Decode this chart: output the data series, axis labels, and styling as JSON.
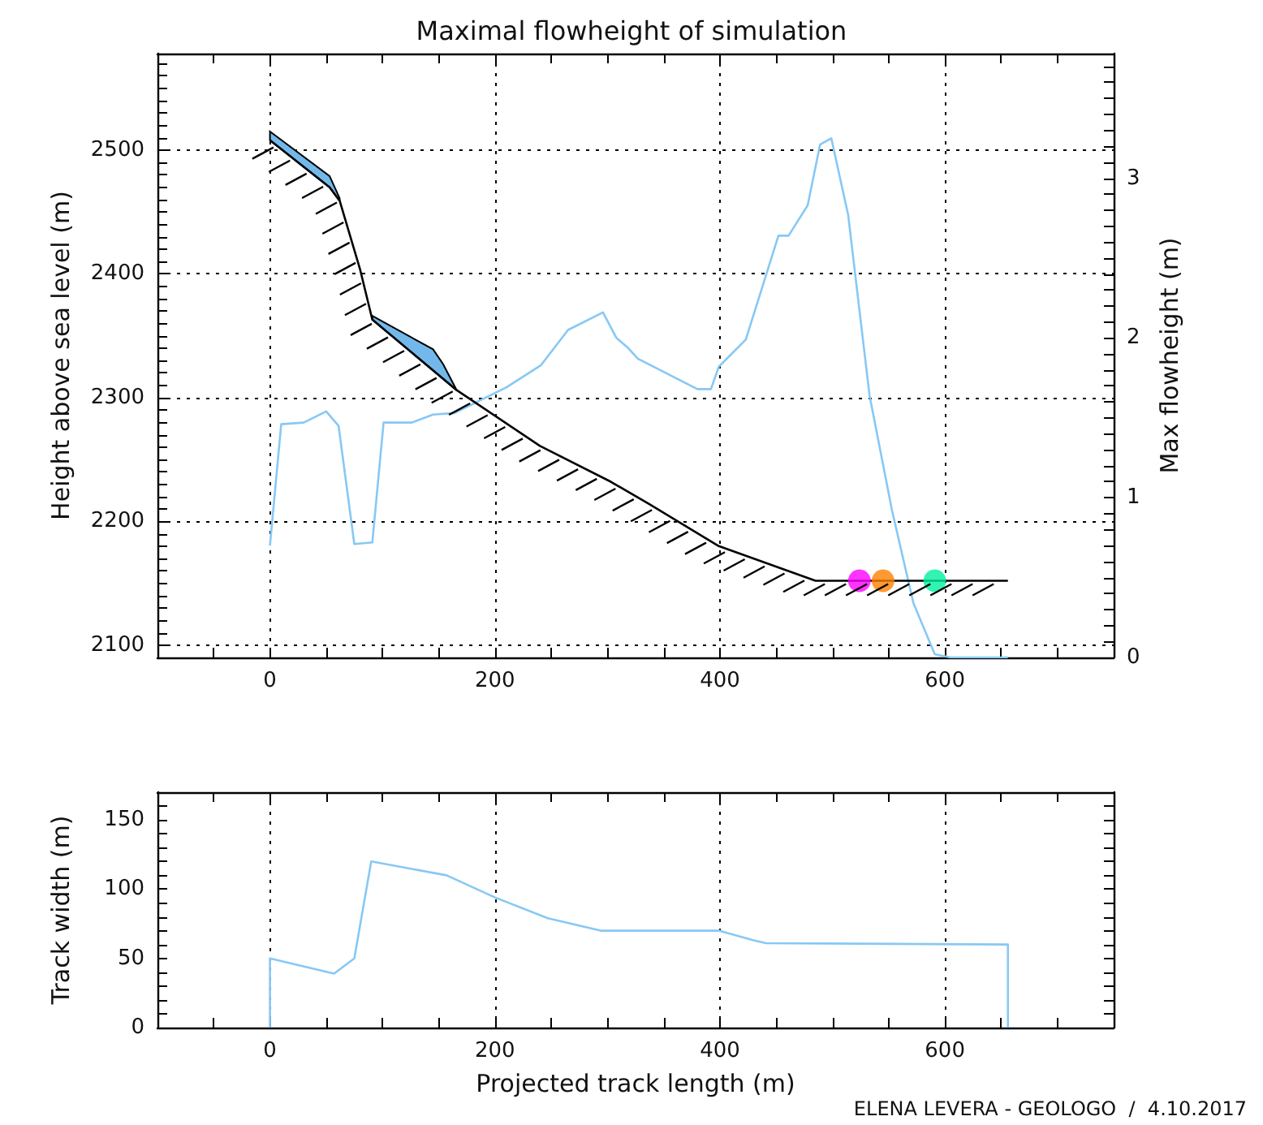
{
  "chart_data": [
    {
      "type": "line",
      "title": "Maximal flowheight of simulation",
      "ylabel": "Height above sea level (m)",
      "y2label": "Max flowheight (m)",
      "xlim": [
        -100,
        750
      ],
      "xticks": [
        {
          "value": -50,
          "label": null
        },
        0,
        {
          "value": 50,
          "label": null
        },
        {
          "value": 100,
          "label": null
        },
        {
          "value": 150,
          "label": null
        },
        200,
        {
          "value": 250,
          "label": null
        },
        {
          "value": 300,
          "label": null
        },
        {
          "value": 350,
          "label": null
        },
        400,
        {
          "value": 450,
          "label": null
        },
        {
          "value": 500,
          "label": null
        },
        {
          "value": 550,
          "label": null
        },
        600,
        {
          "value": 650,
          "label": null
        },
        {
          "value": 700,
          "label": null
        }
      ],
      "ylim": [
        2090,
        2578
      ],
      "yticks": [
        {
          "value": 2090,
          "label": null
        },
        2100,
        {
          "value": 2110,
          "label": null
        },
        {
          "value": 2120,
          "label": null
        },
        {
          "value": 2130,
          "label": null
        },
        {
          "value": 2140,
          "label": null
        },
        {
          "value": 2150,
          "label": null
        },
        {
          "value": 2160,
          "label": null
        },
        {
          "value": 2170,
          "label": null
        },
        {
          "value": 2180,
          "label": null
        },
        {
          "value": 2190,
          "label": null
        },
        2200,
        {
          "value": 2210,
          "label": null
        },
        {
          "value": 2220,
          "label": null
        },
        {
          "value": 2230,
          "label": null
        },
        {
          "value": 2240,
          "label": null
        },
        {
          "value": 2250,
          "label": null
        },
        {
          "value": 2260,
          "label": null
        },
        {
          "value": 2270,
          "label": null
        },
        {
          "value": 2280,
          "label": null
        },
        {
          "value": 2290,
          "label": null
        },
        2300,
        {
          "value": 2310,
          "label": null
        },
        {
          "value": 2320,
          "label": null
        },
        {
          "value": 2330,
          "label": null
        },
        {
          "value": 2340,
          "label": null
        },
        {
          "value": 2350,
          "label": null
        },
        {
          "value": 2360,
          "label": null
        },
        {
          "value": 2370,
          "label": null
        },
        {
          "value": 2380,
          "label": null
        },
        {
          "value": 2390,
          "label": null
        },
        2400,
        {
          "value": 2410,
          "label": null
        },
        {
          "value": 2420,
          "label": null
        },
        {
          "value": 2430,
          "label": null
        },
        {
          "value": 2440,
          "label": null
        },
        {
          "value": 2450,
          "label": null
        },
        {
          "value": 2460,
          "label": null
        },
        {
          "value": 2470,
          "label": null
        },
        {
          "value": 2480,
          "label": null
        },
        {
          "value": 2490,
          "label": null
        },
        2500,
        {
          "value": 2510,
          "label": null
        },
        {
          "value": 2520,
          "label": null
        },
        {
          "value": 2530,
          "label": null
        },
        {
          "value": 2540,
          "label": null
        },
        {
          "value": 2550,
          "label": null
        },
        {
          "value": 2560,
          "label": null
        },
        {
          "value": 2570,
          "label": null
        }
      ],
      "y2lim": [
        0,
        3.78
      ],
      "y2ticks": [
        0,
        {
          "value": 0.1,
          "label": null
        },
        {
          "value": 0.2,
          "label": null
        },
        {
          "value": 0.3,
          "label": null
        },
        {
          "value": 0.4,
          "label": null
        },
        {
          "value": 0.5,
          "label": null
        },
        {
          "value": 0.6,
          "label": null
        },
        {
          "value": 0.7,
          "label": null
        },
        {
          "value": 0.8,
          "label": null
        },
        {
          "value": 0.9,
          "label": null
        },
        1,
        {
          "value": 1.1,
          "label": null
        },
        {
          "value": 1.2,
          "label": null
        },
        {
          "value": 1.3,
          "label": null
        },
        {
          "value": 1.4,
          "label": null
        },
        {
          "value": 1.5,
          "label": null
        },
        {
          "value": 1.6,
          "label": null
        },
        {
          "value": 1.7,
          "label": null
        },
        {
          "value": 1.8,
          "label": null
        },
        {
          "value": 1.9,
          "label": null
        },
        2,
        {
          "value": 2.1,
          "label": null
        },
        {
          "value": 2.2,
          "label": null
        },
        {
          "value": 2.3,
          "label": null
        },
        {
          "value": 2.4,
          "label": null
        },
        {
          "value": 2.5,
          "label": null
        },
        {
          "value": 2.6,
          "label": null
        },
        {
          "value": 2.7,
          "label": null
        },
        {
          "value": 2.8,
          "label": null
        },
        {
          "value": 2.9,
          "label": null
        },
        3,
        {
          "value": 3.1,
          "label": null
        },
        {
          "value": 3.2,
          "label": null
        },
        {
          "value": 3.3,
          "label": null
        },
        {
          "value": 3.4,
          "label": null
        },
        {
          "value": 3.5,
          "label": null
        },
        {
          "value": 3.6,
          "label": null
        },
        {
          "value": 3.7,
          "label": null
        }
      ],
      "grid": true,
      "marker": "none",
      "line_style": "solid",
      "series": [
        {
          "color": "#000000",
          "x": [
            0,
            53,
            62,
            80,
            91,
            166,
            240,
            303,
            337,
            399,
            485,
            656
          ],
          "values": [
            2508,
            2470,
            2459,
            2404,
            2363,
            2306,
            2261,
            2232,
            2214,
            2180,
            2152,
            2152
          ]
        },
        {
          "type": "area",
          "color": "#73b8ea",
          "x": [
            0,
            53,
            62
          ],
          "values": [
            2515,
            2479,
            2461
          ]
        },
        {
          "type": "area",
          "color": "#73b8ea",
          "x": [
            91,
            145,
            154,
            166
          ],
          "values": [
            2366,
            2339,
            2327,
            2306
          ]
        },
        {
          "axis": "y2",
          "color": "#87c8f5",
          "x": [
            0,
            10,
            30,
            50,
            61,
            75,
            91,
            101,
            126,
            145,
            164,
            210,
            241,
            265,
            296,
            308,
            318,
            327,
            380,
            392,
            399,
            423,
            452,
            461,
            478,
            489,
            499,
            514,
            533,
            553,
            572,
            591,
            605,
            656
          ],
          "values": [
            0.7,
            1.46,
            1.47,
            1.54,
            1.45,
            0.71,
            0.72,
            1.47,
            1.47,
            1.52,
            1.53,
            1.69,
            1.83,
            2.05,
            2.16,
            2.0,
            1.94,
            1.87,
            1.68,
            1.68,
            1.82,
            1.99,
            2.64,
            2.64,
            2.83,
            3.21,
            3.25,
            2.77,
            1.64,
            0.92,
            0.34,
            0.02,
            0,
            0
          ]
        },
        {
          "type": "scatter",
          "marker": "circle",
          "x": [
            524,
            545,
            591
          ],
          "values": [
            2152,
            2152,
            2152
          ],
          "colors": [
            "#ff00ff",
            "#ff8000",
            "#00f0a0"
          ]
        }
      ]
    },
    {
      "type": "line",
      "xlabel": "Projected track length (m)",
      "ylabel": "Track width (m)",
      "annotations": [
        "ELENA LEVERA - GEOLOGO  /  4.10.2017"
      ],
      "xlim": [
        -100,
        750
      ],
      "xticks": [
        {
          "value": -50,
          "label": null
        },
        0,
        {
          "value": 50,
          "label": null
        },
        {
          "value": 100,
          "label": null
        },
        {
          "value": 150,
          "label": null
        },
        200,
        {
          "value": 250,
          "label": null
        },
        {
          "value": 300,
          "label": null
        },
        {
          "value": 350,
          "label": null
        },
        400,
        {
          "value": 450,
          "label": null
        },
        {
          "value": 500,
          "label": null
        },
        {
          "value": 550,
          "label": null
        },
        600,
        {
          "value": 650,
          "label": null
        },
        {
          "value": 700,
          "label": null
        }
      ],
      "ylim": [
        0,
        170
      ],
      "yticks": [
        0,
        {
          "value": 10,
          "label": null
        },
        {
          "value": 20,
          "label": null
        },
        {
          "value": 30,
          "label": null
        },
        {
          "value": 40,
          "label": null
        },
        50,
        {
          "value": 60,
          "label": null
        },
        {
          "value": 70,
          "label": null
        },
        {
          "value": 80,
          "label": null
        },
        {
          "value": 90,
          "label": null
        },
        100,
        {
          "value": 110,
          "label": null
        },
        {
          "value": 120,
          "label": null
        },
        {
          "value": 130,
          "label": null
        },
        {
          "value": 140,
          "label": null
        },
        150,
        {
          "value": 160,
          "label": null
        }
      ],
      "grid": "x",
      "marker": "none",
      "line_style": "solid",
      "series": [
        {
          "color": "#87c8f5",
          "x": [
            0,
            0,
            57,
            75,
            90,
            157,
            200,
            247,
            294,
            399,
            430,
            441,
            656,
            656
          ],
          "values": [
            0,
            50,
            39,
            50,
            120,
            110,
            94,
            79,
            70,
            70,
            63,
            61,
            60,
            0
          ]
        }
      ]
    }
  ]
}
